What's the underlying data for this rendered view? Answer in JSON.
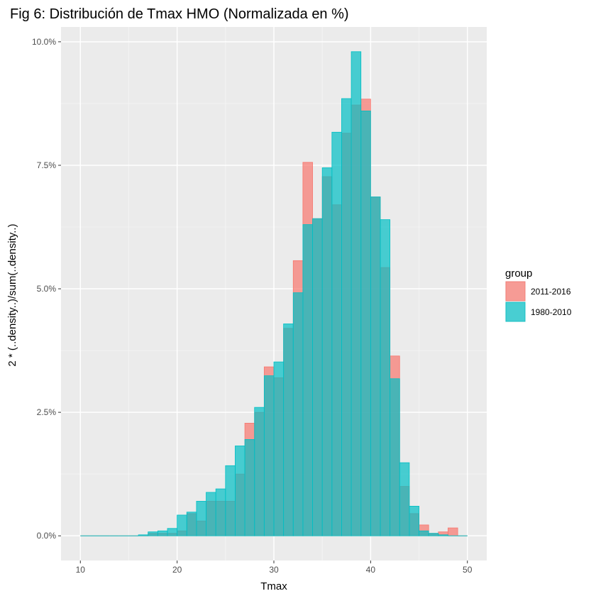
{
  "chart_data": {
    "type": "histogram",
    "title": "Fig 6: Distribución de Tmax HMO (Normalizada en %)",
    "xlabel": "Tmax",
    "ylabel": "2 * (..density..)/sum(..density..)",
    "xlim": [
      8,
      52
    ],
    "ylim": [
      -0.5,
      10.3
    ],
    "x_ticks": [
      10,
      20,
      30,
      40,
      50
    ],
    "x_tick_labels": [
      "10",
      "20",
      "30",
      "40",
      "50"
    ],
    "y_ticks": [
      0,
      2.5,
      5,
      7.5,
      10
    ],
    "y_tick_labels": [
      "0.0%",
      "2.5%",
      "5.0%",
      "7.5%",
      "10.0%"
    ],
    "bin_width": 1,
    "bin_starts": [
      10,
      11,
      12,
      13,
      14,
      15,
      16,
      17,
      18,
      19,
      20,
      21,
      22,
      23,
      24,
      25,
      26,
      27,
      28,
      29,
      30,
      31,
      32,
      33,
      34,
      35,
      36,
      37,
      38,
      39,
      40,
      41,
      42,
      43,
      44,
      45,
      46,
      47,
      48,
      49
    ],
    "legend": {
      "title": "group",
      "position": "right"
    },
    "series": [
      {
        "name": "2011-2016",
        "color": "#F8766D",
        "values": [
          0,
          0,
          0,
          0,
          0,
          0,
          0,
          0.05,
          0.05,
          0.05,
          0.1,
          0.45,
          0.3,
          0.7,
          0.7,
          0.7,
          1.25,
          2.28,
          2.5,
          3.42,
          3.2,
          4.2,
          5.57,
          7.56,
          6.42,
          7.27,
          6.7,
          8.15,
          8.72,
          8.84,
          6.86,
          5.43,
          3.64,
          1.0,
          0.45,
          0.22,
          0.05,
          0.08,
          0.16,
          0
        ]
      },
      {
        "name": "1980-2010",
        "color": "#00BFC4",
        "values": [
          0,
          0,
          0,
          0,
          0,
          0,
          0.02,
          0.08,
          0.1,
          0.15,
          0.42,
          0.48,
          0.7,
          0.88,
          0.95,
          1.42,
          1.82,
          1.95,
          2.6,
          3.24,
          3.52,
          4.29,
          4.92,
          6.3,
          6.42,
          7.45,
          8.17,
          8.85,
          9.8,
          8.6,
          6.86,
          6.4,
          3.18,
          1.48,
          0.6,
          0.1,
          0.05,
          0.02,
          0,
          0
        ]
      }
    ]
  }
}
